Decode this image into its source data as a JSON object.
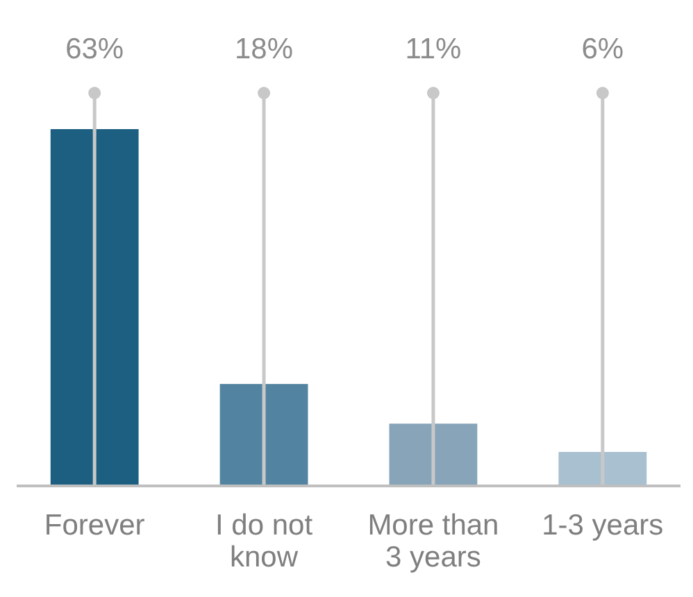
{
  "chart_data": {
    "type": "bar",
    "categories": [
      "Forever",
      "I do not know",
      "More than 3 years",
      "1-3 years"
    ],
    "values": [
      63,
      18,
      11,
      6
    ],
    "colors": [
      "#1c5f80",
      "#5283a0",
      "#87a4b8",
      "#a8c0cf"
    ],
    "value_labels": [
      "63%",
      "18%",
      "11%",
      "6%"
    ],
    "grid": "x"
  }
}
